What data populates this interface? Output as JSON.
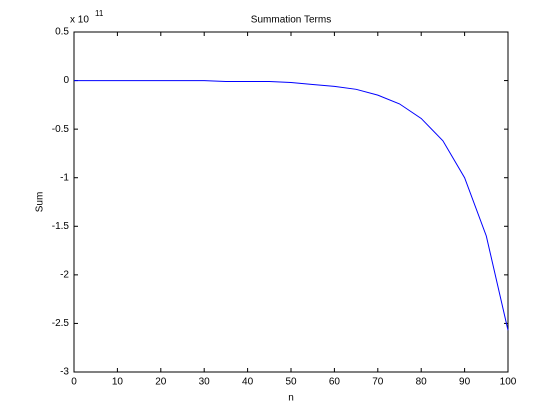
{
  "chart_data": {
    "type": "line",
    "title": "Summation Terms",
    "x_label": "n",
    "y_label": "Sum",
    "y_multiplier": {
      "base": "x 10",
      "exponent": "11"
    },
    "x": [
      0,
      5,
      10,
      15,
      20,
      25,
      30,
      35,
      40,
      45,
      50,
      55,
      60,
      65,
      70,
      75,
      80,
      85,
      90,
      95,
      100
    ],
    "series": [
      {
        "name": "Sum",
        "color": "#0000ff",
        "values": [
          0,
          0,
          0,
          0,
          0,
          0,
          0,
          -0.01,
          -0.01,
          -0.01,
          -0.02,
          -0.04,
          -0.06,
          -0.09,
          -0.15,
          -0.24,
          -0.39,
          -0.62,
          -1.0,
          -1.6,
          -2.57
        ]
      }
    ],
    "xlim": [
      0,
      100
    ],
    "xticks": [
      0,
      10,
      20,
      30,
      40,
      50,
      60,
      70,
      80,
      90,
      100
    ],
    "ylim": [
      -3,
      0.5
    ],
    "yticks": [
      0.5,
      0,
      -0.5,
      -1,
      -1.5,
      -2,
      -2.5,
      -3
    ],
    "grid": false
  }
}
